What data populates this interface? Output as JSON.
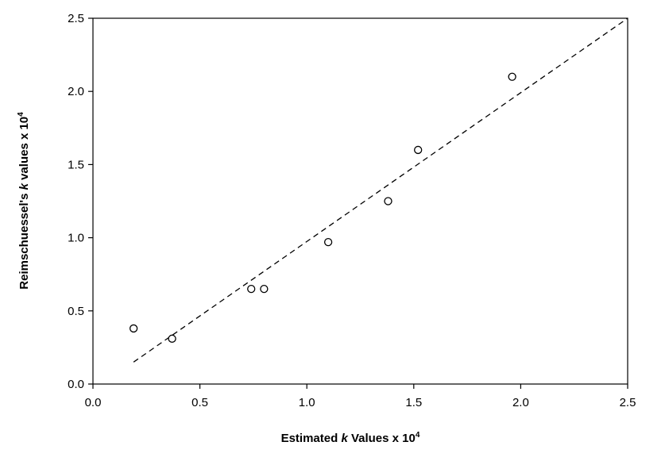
{
  "chart_data": {
    "type": "scatter",
    "title": "",
    "xlabel": {
      "prefix": "Estimated ",
      "italic": "k",
      "suffix": " Values x 10",
      "superscript": "4"
    },
    "ylabel": {
      "prefix": "Reimschuessel's ",
      "italic": "k",
      "suffix": " values x 10",
      "superscript": "4"
    },
    "xlim": [
      0,
      2.5
    ],
    "ylim": [
      0,
      2.5
    ],
    "xticks": [
      "0.0",
      "0.5",
      "1.0",
      "1.5",
      "2.0",
      "2.5"
    ],
    "yticks": [
      "0.0",
      "0.5",
      "1.0",
      "1.5",
      "2.0",
      "2.5"
    ],
    "grid": false,
    "legend": "none",
    "series": [
      {
        "marker": "open-circle",
        "x": [
          0.19,
          0.37,
          0.74,
          0.8,
          1.1,
          1.38,
          1.52,
          1.96
        ],
        "y": [
          0.38,
          0.31,
          0.65,
          0.65,
          0.97,
          1.25,
          1.6,
          2.1
        ]
      }
    ],
    "reference_line": {
      "style": "dashed",
      "x": [
        0.19,
        2.5
      ],
      "y": [
        0.15,
        2.5
      ]
    }
  }
}
